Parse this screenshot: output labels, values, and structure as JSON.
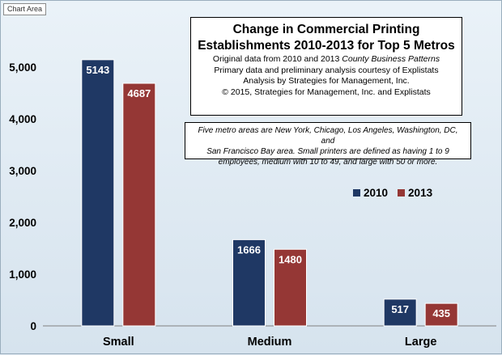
{
  "tag_label": "Chart Area",
  "title_box": {
    "line1": "Change in Commercial Printing",
    "line2": "Establishments 2010-2013 for Top 5 Metros",
    "source_prefix": "Original data from 2010 and 2013",
    "source_italic": "County Business Patterns",
    "line4": "Primary data and preliminary analysis courtesy of Explistats",
    "line5": "Analysis by Strategies for Management, Inc.",
    "line6": "© 2015, Strategies for Management, Inc. and Explistats"
  },
  "note": {
    "line1": "Five metro areas are New York, Chicago, Los Angeles, Washington, DC, and",
    "line2": "San Francisco Bay area. Small printers are defined as having 1 to 9",
    "line3": "employees, medium with 10 to 49, and large with 50 or more."
  },
  "colors": {
    "s2010": "#1f3864",
    "s2013": "#953735"
  },
  "chart_data": {
    "type": "bar",
    "categories": [
      "Small",
      "Medium",
      "Large"
    ],
    "series": [
      {
        "name": "2010",
        "values": [
          5143,
          1666,
          517
        ]
      },
      {
        "name": "2013",
        "values": [
          4687,
          1480,
          435
        ]
      }
    ],
    "data_labels": [
      [
        "5143",
        "1666",
        "517"
      ],
      [
        "4687",
        "1480",
        "435"
      ]
    ],
    "ylim": [
      0,
      5500
    ],
    "yticks": [
      0,
      1000,
      2000,
      3000,
      4000,
      5000
    ],
    "ytick_labels": [
      "0",
      "1,000",
      "2,000",
      "3,000",
      "4,000",
      "5,000"
    ],
    "legend_position": "right, inside plot",
    "grid": false
  }
}
